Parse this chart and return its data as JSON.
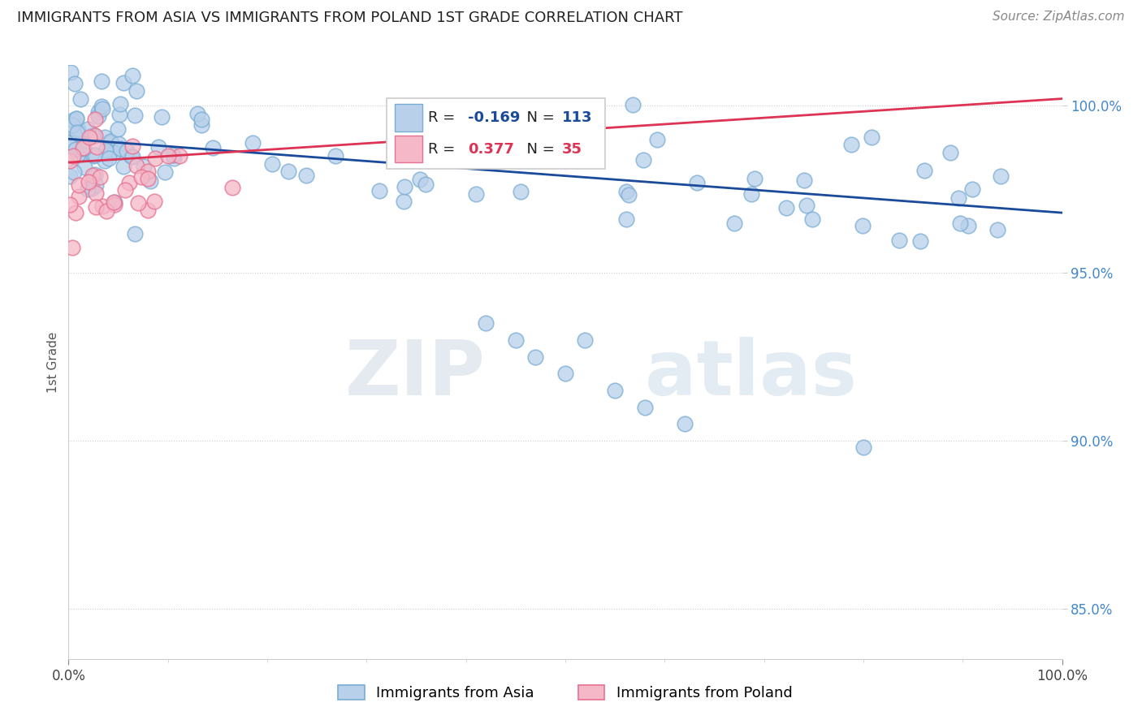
{
  "title": "IMMIGRANTS FROM ASIA VS IMMIGRANTS FROM POLAND 1ST GRADE CORRELATION CHART",
  "source_text": "Source: ZipAtlas.com",
  "ylabel": "1st Grade",
  "x_min": 0.0,
  "x_max": 100.0,
  "y_min": 83.5,
  "y_max": 101.2,
  "y_ticks": [
    85.0,
    90.0,
    95.0,
    100.0
  ],
  "y_tick_labels": [
    "85.0%",
    "90.0%",
    "95.0%",
    "100.0%"
  ],
  "asia_color": "#b8d0ea",
  "asia_edge_color": "#7aadd4",
  "poland_color": "#f5b8c8",
  "poland_edge_color": "#e87090",
  "asia_line_color": "#1a4a9a",
  "poland_line_color": "#dd3355",
  "legend_asia_label": "Immigrants from Asia",
  "legend_poland_label": "Immigrants from Poland",
  "R_asia": -0.169,
  "N_asia": 113,
  "R_poland": 0.377,
  "N_poland": 35,
  "watermark_zip": "ZIP",
  "watermark_atlas": "atlas",
  "asia_trend_x0": 0,
  "asia_trend_y0": 99.0,
  "asia_trend_x1": 100,
  "asia_trend_y1": 96.8,
  "poland_trend_x0": 0,
  "poland_trend_y0": 98.3,
  "poland_trend_x1": 100,
  "poland_trend_y1": 100.2
}
